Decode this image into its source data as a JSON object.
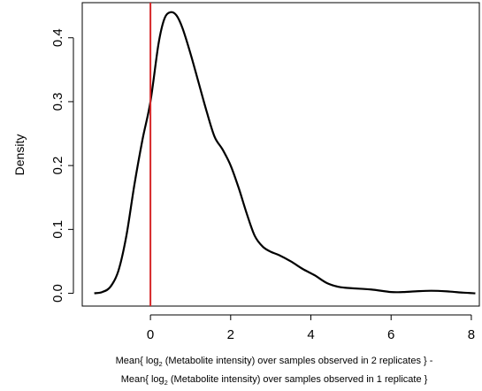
{
  "chart_data": {
    "type": "line",
    "title": "",
    "xlabel": "Mean{ log2 (Metabolite intensity) over samples observed in 2 replicates } - Mean{ log2 (Metabolite intensity) over samples observed in 1 replicate }",
    "xlabel_parts": {
      "line1_pre": "Mean{ log",
      "line1_sub": "2",
      "line1_post": " (Metabolite intensity) over samples observed in 2 replicates } -",
      "line2_pre": "Mean{ log",
      "line2_sub": "2",
      "line2_post": " (Metabolite intensity) over samples observed in 1 replicate }"
    },
    "ylabel": "Density",
    "xlim": [
      -1.7,
      8.2
    ],
    "ylim": [
      -0.02,
      0.455
    ],
    "x_ticks": [
      0,
      2,
      4,
      6,
      8
    ],
    "x_tick_labels": [
      "0",
      "2",
      "4",
      "6",
      "8"
    ],
    "y_ticks": [
      0.0,
      0.1,
      0.2,
      0.3,
      0.4
    ],
    "y_tick_labels": [
      "0.0",
      "0.1",
      "0.2",
      "0.3",
      "0.4"
    ],
    "grid": false,
    "vline": {
      "x": 0,
      "color": "#d62728"
    },
    "line_color": "#000000",
    "series": [
      {
        "x": [
          -1.4,
          -1.2,
          -1.0,
          -0.8,
          -0.6,
          -0.4,
          -0.2,
          0.0,
          0.2,
          0.35,
          0.5,
          0.65,
          0.8,
          1.0,
          1.2,
          1.4,
          1.6,
          1.8,
          2.0,
          2.2,
          2.4,
          2.6,
          2.8,
          3.0,
          3.2,
          3.5,
          3.8,
          4.1,
          4.4,
          4.7,
          5.0,
          5.5,
          6.0,
          6.3,
          6.6,
          7.0,
          7.4,
          7.8,
          8.1
        ],
        "y": [
          0.0,
          0.002,
          0.01,
          0.035,
          0.09,
          0.17,
          0.24,
          0.3,
          0.39,
          0.43,
          0.44,
          0.435,
          0.415,
          0.375,
          0.33,
          0.285,
          0.245,
          0.225,
          0.2,
          0.165,
          0.125,
          0.09,
          0.073,
          0.065,
          0.06,
          0.05,
          0.038,
          0.028,
          0.016,
          0.01,
          0.008,
          0.006,
          0.002,
          0.002,
          0.003,
          0.004,
          0.003,
          0.001,
          0.0
        ]
      }
    ]
  }
}
